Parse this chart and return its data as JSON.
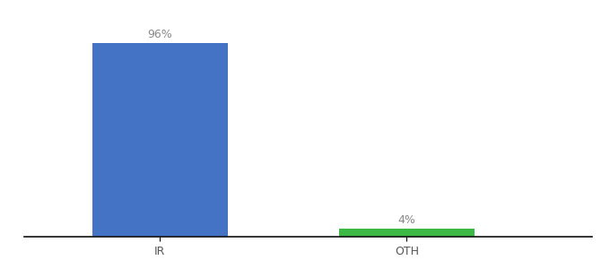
{
  "categories": [
    "IR",
    "OTH"
  ],
  "values": [
    96,
    4
  ],
  "bar_colors": [
    "#4472C4",
    "#3CB944"
  ],
  "label_texts": [
    "96%",
    "4%"
  ],
  "background_color": "#ffffff",
  "ylim": [
    0,
    108
  ],
  "bar_width": 0.55,
  "label_fontsize": 9,
  "tick_fontsize": 9,
  "label_color": "#888888"
}
